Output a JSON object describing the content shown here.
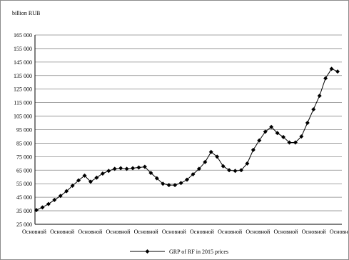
{
  "chart_data": {
    "type": "line",
    "unit_label": "billion  RUB",
    "ylim": [
      25000,
      165000
    ],
    "y_ticks": [
      "25 000",
      "35 000",
      "45 000",
      "55 000",
      "65 000",
      "75 000",
      "85 000",
      "95 000",
      "105 000",
      "115 000",
      "125 000",
      "135 000",
      "145 000",
      "155 000",
      "165 000"
    ],
    "x_tick_labels": [
      "Основной",
      "Основной",
      "Основной",
      "Основной",
      "Основной",
      "Основной",
      "Основной",
      "Основной",
      "Основной",
      "Основной",
      "Основной",
      "Основно"
    ],
    "grid": true,
    "legend_position": "bottom-center",
    "series": [
      {
        "name": "GRP of RF in 2015 prices",
        "color": "#000000",
        "marker": "diamond",
        "values": [
          35500,
          37500,
          40000,
          43000,
          46000,
          49500,
          53500,
          57500,
          61000,
          56500,
          59500,
          62500,
          64500,
          66000,
          66500,
          66000,
          66500,
          67000,
          67500,
          63000,
          59000,
          55000,
          54000,
          54000,
          55500,
          58000,
          62000,
          66000,
          71000,
          78500,
          75000,
          68000,
          65000,
          64500,
          65000,
          70000,
          80000,
          87000,
          93500,
          97000,
          92500,
          89500,
          85500,
          85500,
          90000,
          100000,
          110000,
          120000,
          133000,
          140000,
          138000
        ]
      }
    ]
  }
}
